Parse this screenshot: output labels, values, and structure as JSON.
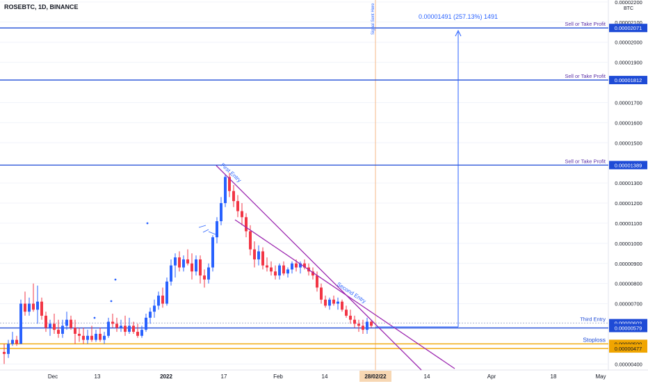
{
  "symbol_header": "ROSEBTC, 1D, BINANCE",
  "measure_label": "0.00001491 (257.13%) 1491",
  "signal_label": "Signal Sent Here",
  "colors": {
    "up": "#2962ff",
    "down": "#f23645",
    "level": "#1e4bd6",
    "level_text": "#5b2fa6",
    "stoploss": "#f0a500",
    "trend": "#9c27b0",
    "axis_text": "#131722",
    "grid": "#f0f3fa"
  },
  "chart_data": {
    "type": "candlestick",
    "title": "ROSEBTC, 1D, BINANCE",
    "currency": "BTC",
    "ylim": [
      3.7e-06,
      2.21e-05
    ],
    "x_ticks": [
      "Dec",
      "13",
      "2022",
      "17",
      "Feb",
      "14",
      "28/02/22",
      "14",
      "Apr",
      "18",
      "May"
    ],
    "y_ticks": [
      "0.00000400",
      "0.00000500",
      "0.00000700",
      "0.00000800",
      "0.00000900",
      "0.00001000",
      "0.00001100",
      "0.00001200",
      "0.00001300",
      "0.00001500",
      "0.00001600",
      "0.00001700",
      "0.00001900",
      "0.00002000",
      "0.00002100",
      "0.00002200"
    ],
    "levels": [
      {
        "label": "Sell or Take Profit",
        "price": "0.00002071",
        "value": 2.071e-05
      },
      {
        "label": "Sell or Take Profit",
        "price": "0.00001812",
        "value": 1.812e-05
      },
      {
        "label": "Sell or Take Profit",
        "price": "0.00001389",
        "value": 1.389e-05
      },
      {
        "label": "Third Entry",
        "price": "0.00000603",
        "value": 6.03e-06
      },
      {
        "label": "",
        "price": "0.00000579",
        "value": 5.79e-06
      },
      {
        "label": "Stoploss",
        "price": "0.00000500",
        "value": 5e-06
      },
      {
        "label": "",
        "price": "0.00000477",
        "value": 4.77e-06
      }
    ],
    "annotations": [
      "First Entry",
      "Second Entry"
    ],
    "candles": [
      {
        "o": 4.6,
        "h": 5.0,
        "l": 4.0,
        "c": 4.5
      },
      {
        "o": 4.5,
        "h": 5.2,
        "l": 4.3,
        "c": 5.0
      },
      {
        "o": 5.0,
        "h": 5.6,
        "l": 4.9,
        "c": 5.2
      },
      {
        "o": 5.2,
        "h": 5.4,
        "l": 4.9,
        "c": 5.0
      },
      {
        "o": 5.0,
        "h": 7.2,
        "l": 5.0,
        "c": 7.0
      },
      {
        "o": 7.0,
        "h": 7.6,
        "l": 6.4,
        "c": 6.6
      },
      {
        "o": 6.6,
        "h": 7.3,
        "l": 6.4,
        "c": 7.0
      },
      {
        "o": 7.0,
        "h": 8.0,
        "l": 6.6,
        "c": 6.7
      },
      {
        "o": 6.7,
        "h": 7.9,
        "l": 6.0,
        "c": 7.1
      },
      {
        "o": 7.1,
        "h": 7.3,
        "l": 6.2,
        "c": 6.4
      },
      {
        "o": 6.4,
        "h": 6.6,
        "l": 5.6,
        "c": 5.8
      },
      {
        "o": 5.8,
        "h": 6.2,
        "l": 5.4,
        "c": 6.0
      },
      {
        "o": 6.0,
        "h": 6.5,
        "l": 5.5,
        "c": 5.7
      },
      {
        "o": 5.7,
        "h": 6.2,
        "l": 5.3,
        "c": 5.5
      },
      {
        "o": 5.5,
        "h": 6.2,
        "l": 5.3,
        "c": 5.9
      },
      {
        "o": 5.9,
        "h": 6.6,
        "l": 5.7,
        "c": 6.2
      },
      {
        "o": 6.2,
        "h": 6.4,
        "l": 5.7,
        "c": 5.8
      },
      {
        "o": 5.8,
        "h": 6.2,
        "l": 5.0,
        "c": 5.5
      },
      {
        "o": 5.5,
        "h": 5.8,
        "l": 5.1,
        "c": 5.4
      },
      {
        "o": 5.4,
        "h": 5.8,
        "l": 5.0,
        "c": 5.2
      },
      {
        "o": 5.2,
        "h": 5.7,
        "l": 5.0,
        "c": 5.4
      },
      {
        "o": 5.4,
        "h": 5.9,
        "l": 5.1,
        "c": 5.2
      },
      {
        "o": 5.2,
        "h": 5.7,
        "l": 5.1,
        "c": 5.5
      },
      {
        "o": 5.5,
        "h": 5.8,
        "l": 5.1,
        "c": 5.2
      },
      {
        "o": 5.2,
        "h": 5.6,
        "l": 5.0,
        "c": 5.4
      },
      {
        "o": 5.4,
        "h": 6.3,
        "l": 5.3,
        "c": 6.1
      },
      {
        "o": 6.1,
        "h": 6.5,
        "l": 5.8,
        "c": 6.0
      },
      {
        "o": 6.0,
        "h": 6.3,
        "l": 5.6,
        "c": 5.8
      },
      {
        "o": 5.8,
        "h": 6.2,
        "l": 5.6,
        "c": 5.9
      },
      {
        "o": 5.9,
        "h": 6.4,
        "l": 5.4,
        "c": 5.6
      },
      {
        "o": 5.6,
        "h": 6.3,
        "l": 5.5,
        "c": 5.9
      },
      {
        "o": 5.9,
        "h": 6.1,
        "l": 5.5,
        "c": 5.6
      },
      {
        "o": 5.6,
        "h": 6.0,
        "l": 5.3,
        "c": 5.4
      },
      {
        "o": 5.4,
        "h": 5.9,
        "l": 5.3,
        "c": 5.7
      },
      {
        "o": 5.7,
        "h": 6.5,
        "l": 5.6,
        "c": 6.3
      },
      {
        "o": 6.3,
        "h": 6.8,
        "l": 6.0,
        "c": 6.6
      },
      {
        "o": 6.6,
        "h": 7.2,
        "l": 6.3,
        "c": 6.9
      },
      {
        "o": 6.9,
        "h": 7.6,
        "l": 6.7,
        "c": 7.4
      },
      {
        "o": 7.4,
        "h": 7.8,
        "l": 6.8,
        "c": 7.0
      },
      {
        "o": 7.0,
        "h": 8.3,
        "l": 6.9,
        "c": 8.1
      },
      {
        "o": 8.1,
        "h": 9.2,
        "l": 7.9,
        "c": 8.9
      },
      {
        "o": 8.9,
        "h": 9.5,
        "l": 8.3,
        "c": 9.3
      },
      {
        "o": 9.3,
        "h": 9.6,
        "l": 8.6,
        "c": 8.8
      },
      {
        "o": 8.8,
        "h": 9.4,
        "l": 8.6,
        "c": 9.2
      },
      {
        "o": 9.2,
        "h": 9.7,
        "l": 8.9,
        "c": 9.0
      },
      {
        "o": 9.0,
        "h": 9.5,
        "l": 8.2,
        "c": 8.6
      },
      {
        "o": 8.6,
        "h": 9.4,
        "l": 8.4,
        "c": 9.2
      },
      {
        "o": 9.2,
        "h": 9.4,
        "l": 8.0,
        "c": 8.4
      },
      {
        "o": 8.4,
        "h": 8.7,
        "l": 7.8,
        "c": 8.2
      },
      {
        "o": 8.2,
        "h": 9.0,
        "l": 8.0,
        "c": 8.8
      },
      {
        "o": 8.8,
        "h": 10.4,
        "l": 8.6,
        "c": 10.3
      },
      {
        "o": 10.3,
        "h": 11.3,
        "l": 10.0,
        "c": 11.1
      },
      {
        "o": 11.1,
        "h": 12.3,
        "l": 10.9,
        "c": 12.0
      },
      {
        "o": 12.0,
        "h": 13.4,
        "l": 11.8,
        "c": 13.3
      },
      {
        "o": 13.3,
        "h": 13.5,
        "l": 12.3,
        "c": 12.6
      },
      {
        "o": 12.6,
        "h": 12.9,
        "l": 11.8,
        "c": 12.1
      },
      {
        "o": 12.1,
        "h": 12.4,
        "l": 11.3,
        "c": 11.6
      },
      {
        "o": 11.6,
        "h": 12.0,
        "l": 10.9,
        "c": 11.3
      },
      {
        "o": 11.3,
        "h": 11.5,
        "l": 10.3,
        "c": 10.6
      },
      {
        "o": 10.6,
        "h": 10.9,
        "l": 9.4,
        "c": 9.7
      },
      {
        "o": 9.7,
        "h": 10.1,
        "l": 8.8,
        "c": 9.2
      },
      {
        "o": 9.2,
        "h": 9.9,
        "l": 8.9,
        "c": 9.6
      },
      {
        "o": 9.6,
        "h": 9.8,
        "l": 8.7,
        "c": 8.9
      },
      {
        "o": 8.9,
        "h": 9.3,
        "l": 8.6,
        "c": 8.8
      },
      {
        "o": 8.8,
        "h": 9.1,
        "l": 8.4,
        "c": 8.6
      },
      {
        "o": 8.6,
        "h": 8.9,
        "l": 8.2,
        "c": 8.4
      },
      {
        "o": 8.4,
        "h": 9.0,
        "l": 8.2,
        "c": 8.9
      },
      {
        "o": 8.9,
        "h": 9.1,
        "l": 8.4,
        "c": 8.5
      },
      {
        "o": 8.5,
        "h": 8.8,
        "l": 8.3,
        "c": 8.7
      },
      {
        "o": 8.7,
        "h": 9.1,
        "l": 8.5,
        "c": 9.0
      },
      {
        "o": 9.0,
        "h": 9.2,
        "l": 8.6,
        "c": 8.8
      },
      {
        "o": 8.8,
        "h": 9.1,
        "l": 8.5,
        "c": 9.0
      },
      {
        "o": 9.0,
        "h": 9.2,
        "l": 8.7,
        "c": 8.8
      },
      {
        "o": 8.8,
        "h": 9.0,
        "l": 8.4,
        "c": 8.6
      },
      {
        "o": 8.6,
        "h": 8.8,
        "l": 8.2,
        "c": 8.4
      },
      {
        "o": 8.4,
        "h": 8.6,
        "l": 7.6,
        "c": 7.8
      },
      {
        "o": 7.8,
        "h": 8.0,
        "l": 7.0,
        "c": 7.2
      },
      {
        "o": 7.2,
        "h": 7.4,
        "l": 6.8,
        "c": 6.9
      },
      {
        "o": 6.9,
        "h": 7.3,
        "l": 6.7,
        "c": 7.2
      },
      {
        "o": 7.2,
        "h": 7.4,
        "l": 6.9,
        "c": 7.0
      },
      {
        "o": 7.0,
        "h": 7.3,
        "l": 6.7,
        "c": 7.1
      },
      {
        "o": 7.1,
        "h": 7.2,
        "l": 6.6,
        "c": 6.7
      },
      {
        "o": 6.7,
        "h": 6.9,
        "l": 6.3,
        "c": 6.4
      },
      {
        "o": 6.4,
        "h": 6.7,
        "l": 6.0,
        "c": 6.2
      },
      {
        "o": 6.2,
        "h": 6.4,
        "l": 5.8,
        "c": 6.0
      },
      {
        "o": 6.0,
        "h": 6.2,
        "l": 5.6,
        "c": 5.9
      },
      {
        "o": 5.9,
        "h": 6.2,
        "l": 5.5,
        "c": 5.7
      },
      {
        "o": 5.7,
        "h": 6.3,
        "l": 5.5,
        "c": 6.1
      },
      {
        "o": 6.1,
        "h": 6.2,
        "l": 5.8,
        "c": 5.9
      }
    ]
  }
}
